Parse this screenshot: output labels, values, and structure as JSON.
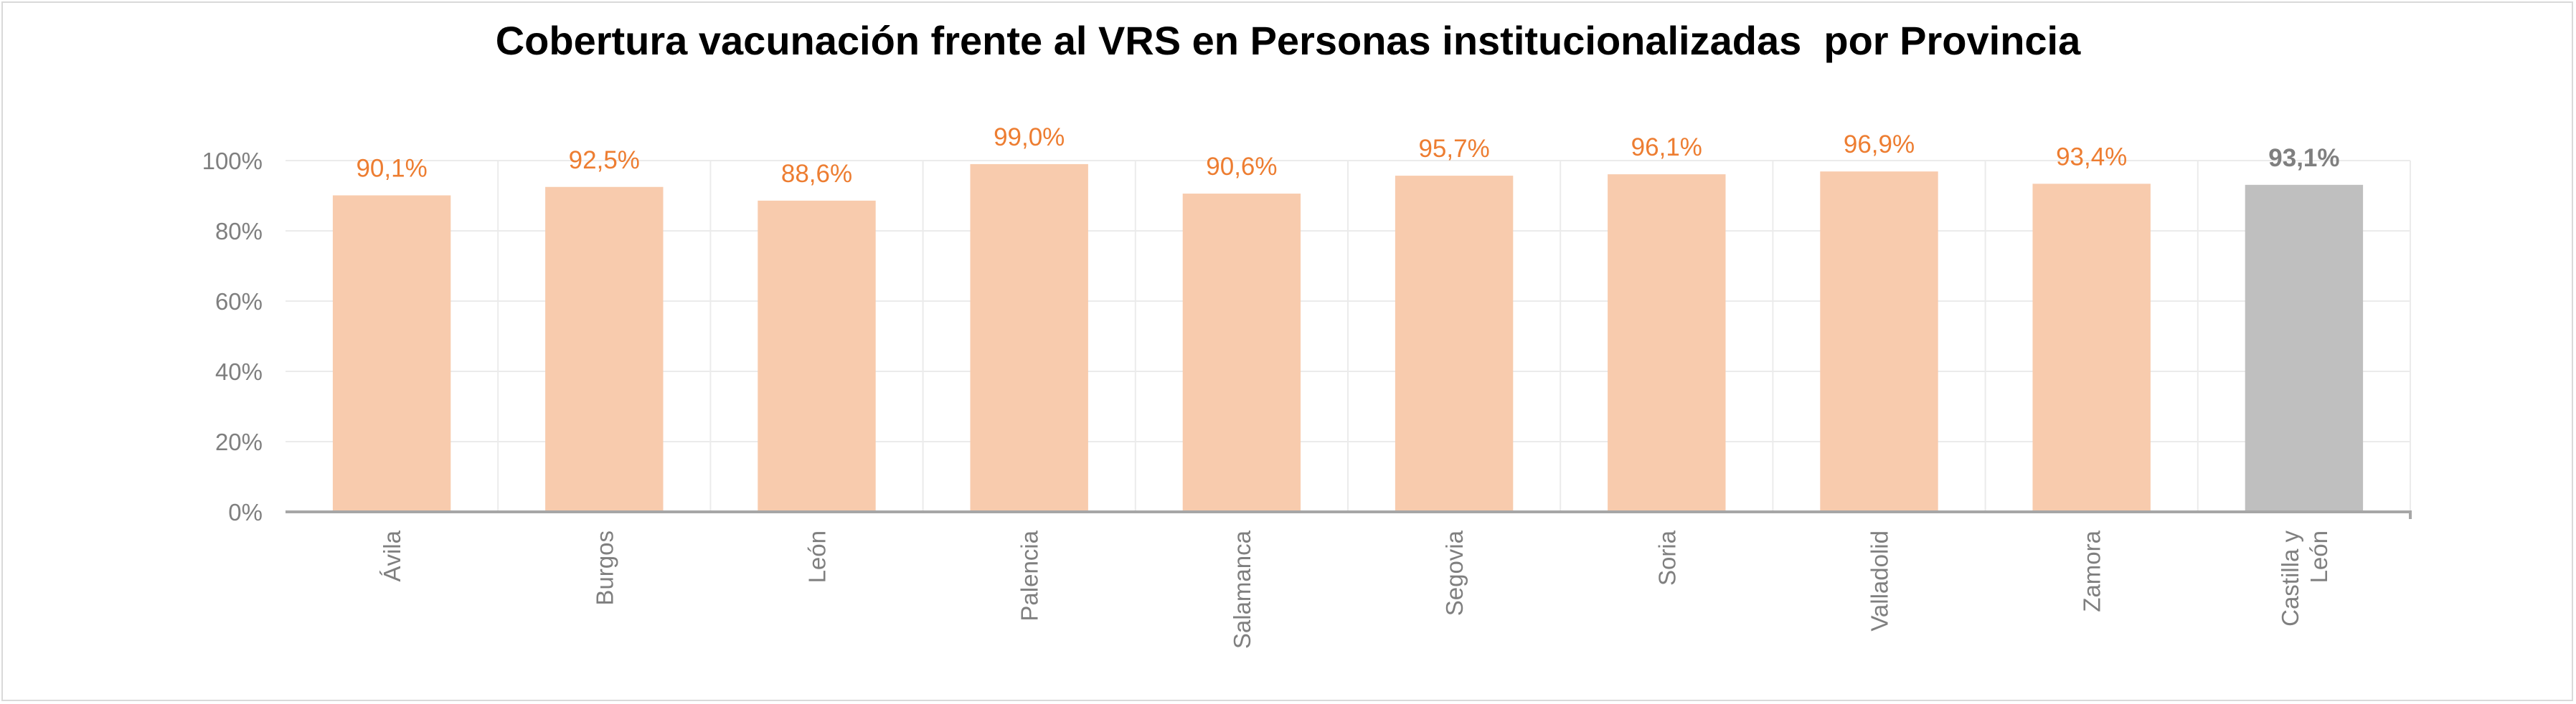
{
  "chart_data": {
    "type": "bar",
    "title": "Cobertura vacunación frente al VRS en Personas institucionalizadas  por Provincia",
    "categories": [
      "Ávila",
      "Burgos",
      "León",
      "Palencia",
      "Salamanca",
      "Segovia",
      "Soria",
      "Valladolid",
      "Zamora",
      "Castilla y León"
    ],
    "category_lines": [
      [
        "Ávila"
      ],
      [
        "Burgos"
      ],
      [
        "León"
      ],
      [
        "Palencia"
      ],
      [
        "Salamanca"
      ],
      [
        "Segovia"
      ],
      [
        "Soria"
      ],
      [
        "Valladolid"
      ],
      [
        "Zamora"
      ],
      [
        "Castilla y",
        "León"
      ]
    ],
    "values": [
      90.1,
      92.5,
      88.6,
      99.0,
      90.6,
      95.7,
      96.1,
      96.9,
      93.4,
      93.1
    ],
    "data_labels": [
      "90,1%",
      "92,5%",
      "88,6%",
      "99,0%",
      "90,6%",
      "95,7%",
      "96,1%",
      "96,9%",
      "93,4%",
      "93,1%"
    ],
    "highlight_index": 9,
    "ylim": [
      0,
      100
    ],
    "yticks": [
      0,
      20,
      40,
      60,
      80,
      100
    ],
    "ytick_labels": [
      "0%",
      "20%",
      "40%",
      "60%",
      "80%",
      "100%"
    ],
    "xlabel": "",
    "ylabel": "",
    "grid": true,
    "legend": "none",
    "colors": {
      "bar": "#f8cbad",
      "bar_highlight": "#bfbfbf",
      "label": "#ed7d31",
      "label_highlight": "#7f7f7f",
      "grid": "#ebebeb",
      "axis": "#a6a6a6",
      "tick_text": "#7f7f7f"
    }
  }
}
